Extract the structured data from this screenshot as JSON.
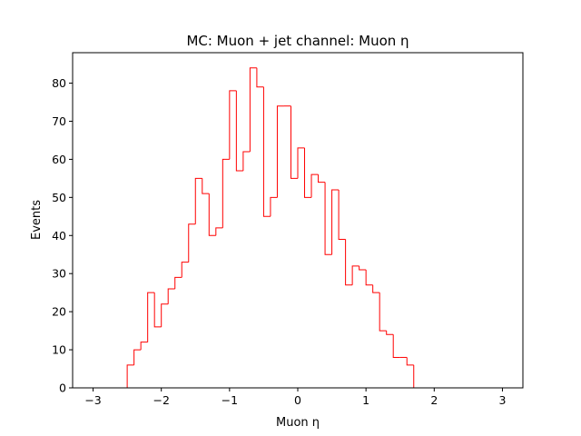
{
  "chart_data": {
    "type": "histogram",
    "title": "MC: Muon + jet channel: Muon η",
    "xlabel": "Muon η",
    "ylabel": "Events",
    "xlim": [
      -3.3,
      3.3
    ],
    "ylim": [
      0,
      88
    ],
    "xticks": [
      -3,
      -2,
      -1,
      0,
      1,
      2,
      3
    ],
    "yticks": [
      0,
      10,
      20,
      30,
      40,
      50,
      60,
      70,
      80
    ],
    "grid": false,
    "legend": "none",
    "bin_edges": [
      -3.0,
      -2.9,
      -2.8,
      -2.7,
      -2.6,
      -2.5,
      -2.4,
      -2.3,
      -2.2,
      -2.1,
      -2.0,
      -1.9,
      -1.8,
      -1.7,
      -1.6,
      -1.5,
      -1.4,
      -1.3,
      -1.2,
      -1.1,
      -1.0,
      -0.9,
      -0.8,
      -0.7,
      -0.6,
      -0.5,
      -0.4,
      -0.3,
      -0.2,
      -0.1,
      0.0,
      0.1,
      0.2,
      0.3,
      0.4,
      0.5,
      0.6,
      0.7,
      0.8,
      0.9,
      1.0,
      1.1,
      1.2,
      1.3,
      1.4,
      1.5,
      1.6,
      1.7,
      1.8,
      1.9,
      2.0,
      2.1,
      2.2,
      2.3,
      2.4,
      2.5,
      2.6,
      2.7,
      2.8,
      2.9,
      3.0
    ],
    "counts": [
      0,
      0,
      0,
      0,
      0,
      6,
      10,
      12,
      25,
      16,
      22,
      26,
      29,
      33,
      43,
      55,
      51,
      40,
      42,
      60,
      78,
      57,
      62,
      84,
      79,
      45,
      50,
      74,
      74,
      55,
      63,
      50,
      56,
      54,
      35,
      52,
      39,
      27,
      32,
      31,
      27,
      25,
      15,
      14,
      8,
      8,
      6,
      0,
      0,
      0,
      0,
      0,
      0,
      0,
      0,
      0,
      0,
      0,
      0,
      0
    ],
    "line_color": "#ff0000"
  }
}
